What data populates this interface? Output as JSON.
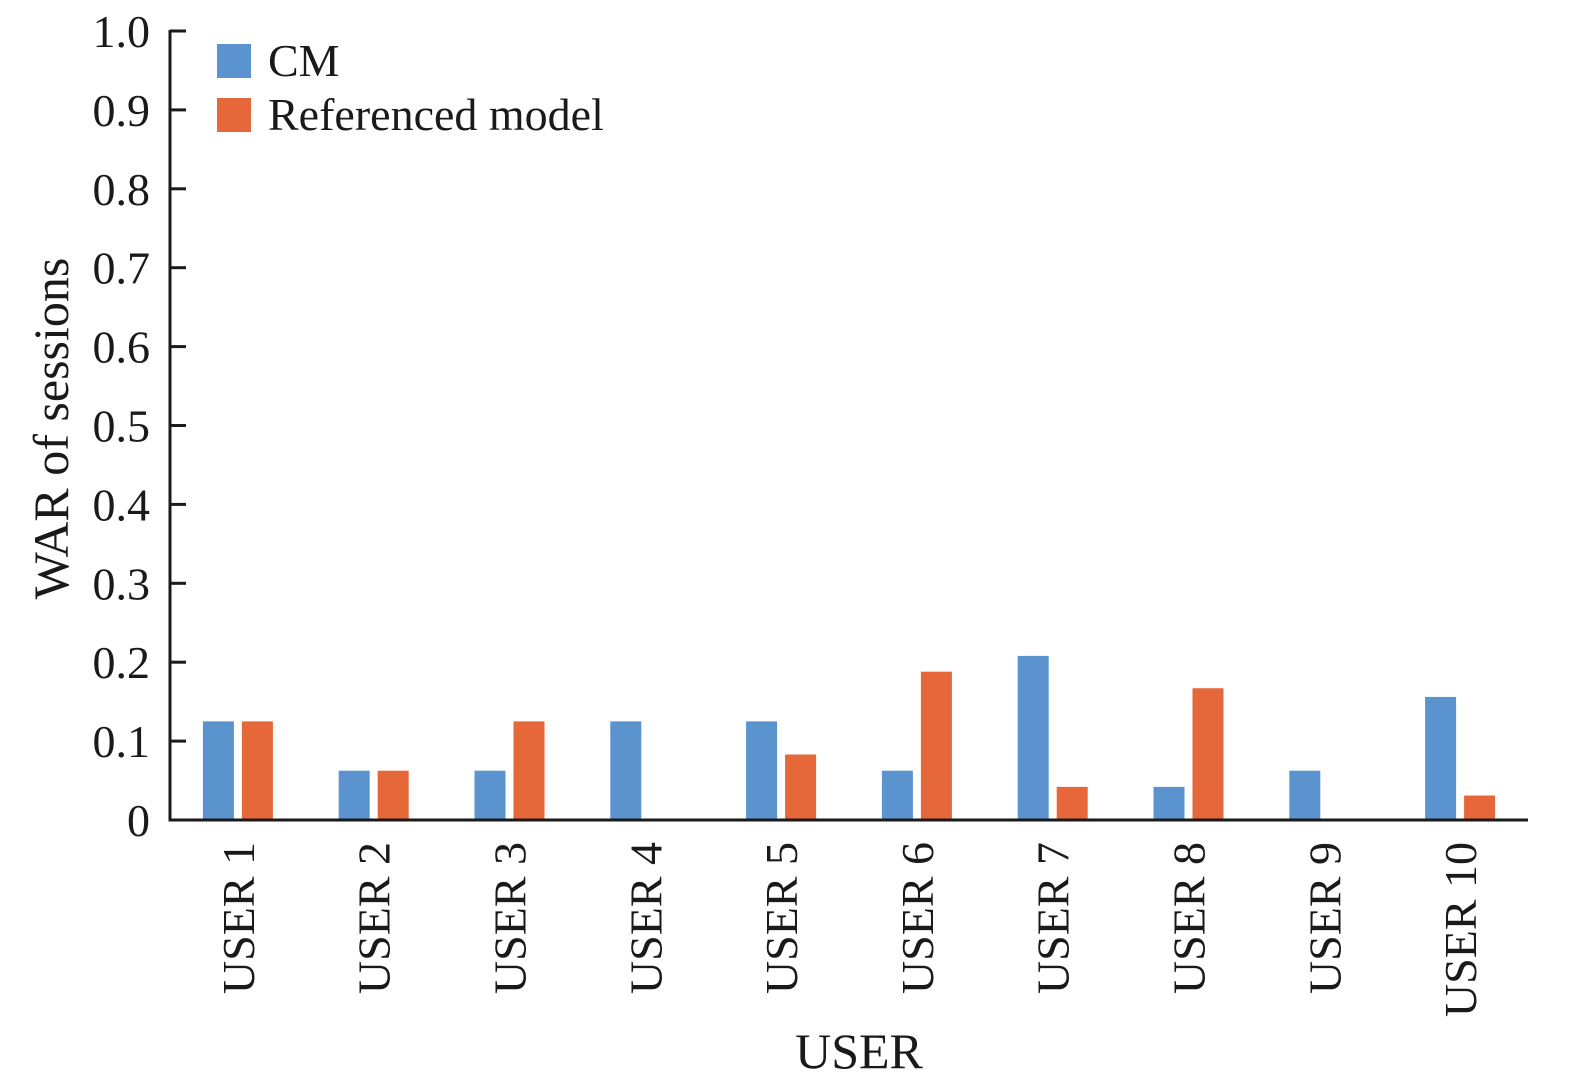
{
  "chart_data": {
    "type": "bar",
    "title": "",
    "xlabel": "USER",
    "ylabel": "WAR of sessions",
    "ylim": [
      0,
      1.0
    ],
    "yticks": [
      "0",
      "0.1",
      "0.2",
      "0.3",
      "0.4",
      "0.5",
      "0.6",
      "0.7",
      "0.8",
      "0.9",
      "1.0"
    ],
    "grid": false,
    "legend_position": "top-left",
    "categories": [
      "USER 1",
      "USER 2",
      "USER 3",
      "USER 4",
      "USER 5",
      "USER 6",
      "USER 7",
      "USER 8",
      "USER 9",
      "USER 10"
    ],
    "series": [
      {
        "name": "CM",
        "color": "#5b93cf",
        "values": [
          0.125,
          0.0625,
          0.0625,
          0.125,
          0.125,
          0.0625,
          0.208,
          0.042,
          0.0625,
          0.156
        ]
      },
      {
        "name": "Referenced model",
        "color": "#e5673a",
        "values": [
          0.125,
          0.0625,
          0.125,
          0,
          0.083,
          0.188,
          0.042,
          0.167,
          0,
          0.031
        ]
      }
    ]
  }
}
